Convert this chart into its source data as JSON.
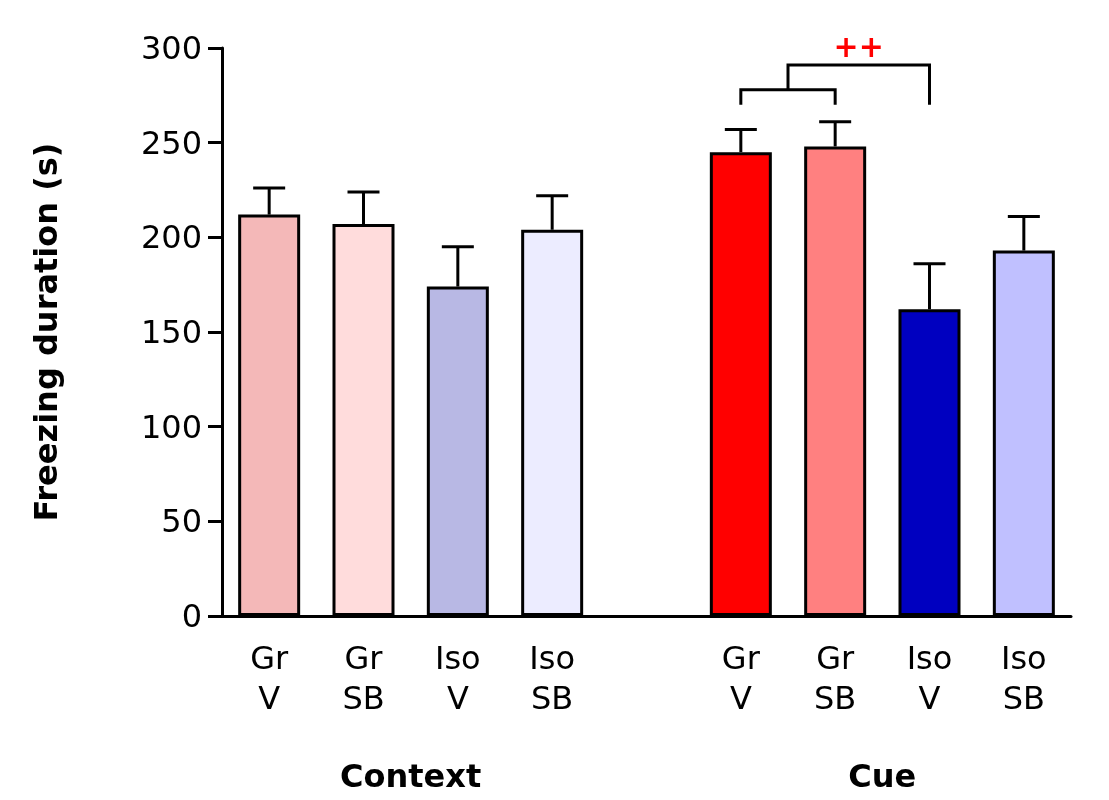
{
  "chart_data": {
    "type": "bar",
    "ylabel": "Freezing duration (s)",
    "categories": [
      "Gr\nV",
      "Gr\nSB",
      "Iso\nV",
      "Iso\nSB",
      null,
      "Gr\nV",
      "Gr\nSB",
      "Iso\nV",
      "Iso\nSB"
    ],
    "values": [
      212,
      207,
      174,
      204,
      null,
      245,
      248,
      162,
      193
    ],
    "errors": [
      [
        212,
        226
      ],
      [
        207,
        224
      ],
      [
        174,
        195
      ],
      [
        204,
        222
      ],
      null,
      [
        245,
        257
      ],
      [
        248,
        261
      ],
      [
        162,
        186
      ],
      [
        193,
        211
      ]
    ],
    "colors": [
      "#f4b8b8",
      "#ffdcdc",
      "#b8b8e4",
      "#ececff",
      "#ffffff",
      "#ff0000",
      "#ff8080",
      "#0000c0",
      "#c0c0ff"
    ],
    "ylim": [
      0,
      300
    ],
    "yticks": [
      0,
      50,
      100,
      150,
      200,
      250,
      300
    ],
    "grid": false,
    "annotations": [
      "++",
      "Context",
      "Cue"
    ]
  }
}
